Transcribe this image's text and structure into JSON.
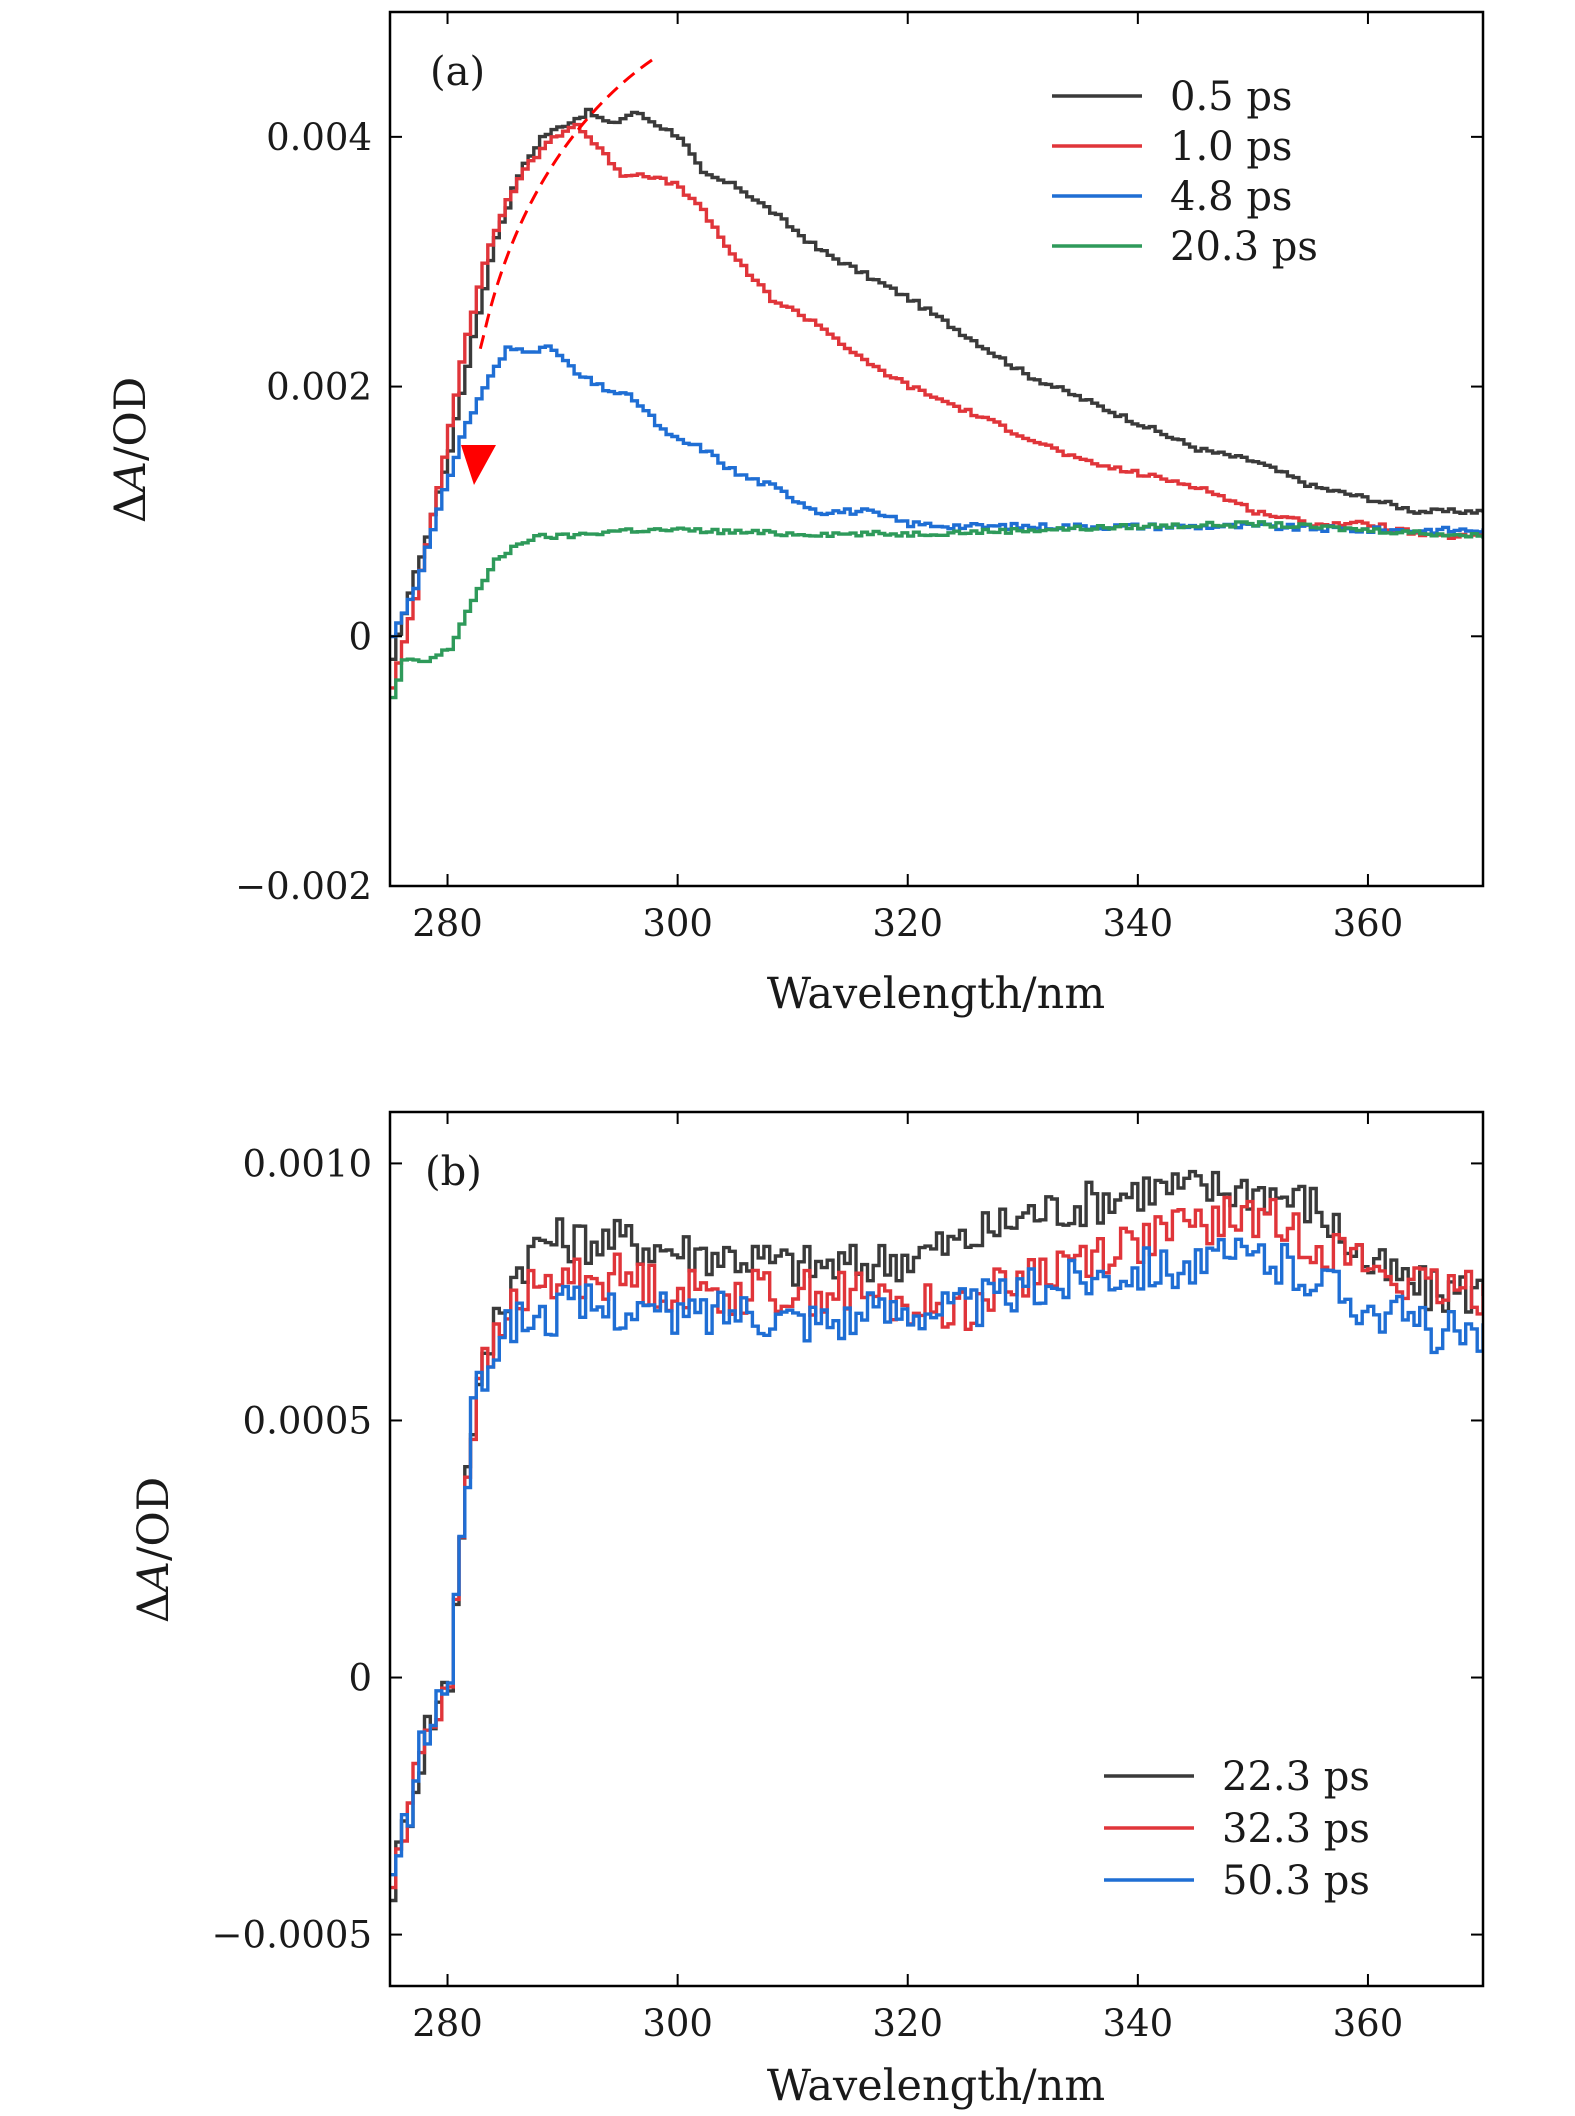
{
  "colors": {
    "black": "#3a3a3a",
    "red": "#e0353a",
    "blue": "#1f6ed4",
    "green": "#2e9a5a",
    "annotation": "#ff0000"
  },
  "chart_data": [
    {
      "type": "line",
      "panel_label": "(a)",
      "xlabel": "Wavelength/nm",
      "ylabel": "ΔA/OD",
      "ylabel_prefix": "Δ",
      "ylabel_var": "A",
      "ylabel_suffix": "/OD",
      "xlim": [
        275,
        370
      ],
      "ylim": [
        -0.002,
        0.005
      ],
      "xticks": [
        280,
        300,
        320,
        340,
        360
      ],
      "xtick_labels": [
        "280",
        "300",
        "320",
        "340",
        "360"
      ],
      "yticks": [
        -0.002,
        0,
        0.002,
        0.004
      ],
      "ytick_labels": [
        "−0.002",
        "0",
        "0.002",
        "0.004"
      ],
      "legend_position": "top-right",
      "series": [
        {
          "name": "0.5 ps",
          "color": "#3a3a3a",
          "jitter": 2e-05,
          "x": [
            275,
            276,
            277,
            278,
            280,
            282,
            284,
            286,
            288,
            290,
            292,
            294,
            296,
            298,
            300,
            302,
            305,
            308,
            312,
            316,
            320,
            325,
            330,
            335,
            340,
            345,
            350,
            355,
            360,
            364,
            367,
            370
          ],
          "y": [
            -0.0002,
            0.0002,
            0.0005,
            0.0008,
            0.0015,
            0.0024,
            0.0032,
            0.0037,
            0.004,
            0.0041,
            0.0042,
            0.0041,
            0.0042,
            0.0041,
            0.004,
            0.0037,
            0.0036,
            0.0034,
            0.0031,
            0.0029,
            0.0027,
            0.0024,
            0.0021,
            0.0019,
            0.0017,
            0.0015,
            0.0014,
            0.0012,
            0.0011,
            0.001,
            0.001,
            0.001
          ]
        },
        {
          "name": "1.0 ps",
          "color": "#e0353a",
          "jitter": 2e-05,
          "x": [
            275,
            277,
            279,
            281,
            283,
            285,
            287,
            289,
            291,
            293,
            295,
            297,
            300,
            302,
            305,
            308,
            312,
            316,
            320,
            325,
            330,
            335,
            340,
            345,
            350,
            355,
            360,
            365,
            370
          ],
          "y": [
            -0.0004,
            0.0003,
            0.0012,
            0.0022,
            0.003,
            0.0035,
            0.0038,
            0.004,
            0.0041,
            0.0039,
            0.0037,
            0.0037,
            0.0036,
            0.0034,
            0.003,
            0.0027,
            0.0025,
            0.0022,
            0.002,
            0.0018,
            0.0016,
            0.0014,
            0.0013,
            0.0012,
            0.001,
            0.0009,
            0.0009,
            0.0008,
            0.0008
          ]
        },
        {
          "name": "4.8 ps",
          "color": "#1f6ed4",
          "jitter": 2.5e-05,
          "x": [
            275,
            277,
            279,
            281,
            283,
            285,
            287,
            289,
            291,
            293,
            296,
            299,
            302,
            305,
            308,
            312,
            316,
            320,
            325,
            330,
            340,
            350,
            360,
            365,
            370
          ],
          "y": [
            0.0,
            0.0004,
            0.001,
            0.0016,
            0.002,
            0.0023,
            0.0023,
            0.0023,
            0.0021,
            0.002,
            0.0019,
            0.0016,
            0.0015,
            0.0013,
            0.0012,
            0.001,
            0.001,
            0.0009,
            0.00088,
            0.00088,
            0.00088,
            0.00088,
            0.00085,
            0.00085,
            0.00085
          ]
        },
        {
          "name": "20.3 ps",
          "color": "#2e9a5a",
          "jitter": 2e-05,
          "x": [
            275,
            276,
            278,
            280,
            282,
            284,
            286,
            288,
            290,
            295,
            300,
            310,
            320,
            330,
            340,
            350,
            360,
            370
          ],
          "y": [
            -0.0005,
            -0.0002,
            -0.0002,
            -0.0001,
            0.0003,
            0.0006,
            0.00075,
            0.0008,
            0.0008,
            0.00085,
            0.00085,
            0.00082,
            0.00082,
            0.00085,
            0.00088,
            0.0009,
            0.00085,
            0.0008
          ]
        }
      ]
    },
    {
      "type": "line",
      "panel_label": "(b)",
      "xlabel": "Wavelength/nm",
      "ylabel": "ΔA/OD",
      "ylabel_prefix": "Δ",
      "ylabel_var": "A",
      "ylabel_suffix": "/OD",
      "xlim": [
        275,
        370
      ],
      "ylim": [
        -0.0006,
        0.0011
      ],
      "xticks": [
        280,
        300,
        320,
        340,
        360
      ],
      "xtick_labels": [
        "280",
        "300",
        "320",
        "340",
        "360"
      ],
      "yticks": [
        -0.0005,
        0,
        0.0005,
        0.001
      ],
      "ytick_labels": [
        "−0.0005",
        "0",
        "0.0005",
        "0.0010"
      ],
      "legend_position": "bottom-right",
      "series": [
        {
          "name": "22.3 ps",
          "color": "#3a3a3a",
          "jitter": 4.5e-05,
          "x": [
            275,
            276,
            277,
            278,
            279,
            280,
            281,
            282,
            283,
            284,
            285,
            286,
            288,
            290,
            295,
            300,
            305,
            310,
            315,
            320,
            325,
            330,
            335,
            340,
            345,
            350,
            355,
            360,
            365,
            370
          ],
          "y": [
            -0.0004,
            -0.0003,
            -0.0002,
            -0.0001,
            -5e-05,
            0.0,
            0.0003,
            0.0005,
            0.0006,
            0.0007,
            0.00075,
            0.0008,
            0.00085,
            0.00085,
            0.00085,
            0.00083,
            0.00082,
            0.0008,
            0.0008,
            0.00082,
            0.00085,
            0.0009,
            0.00092,
            0.00095,
            0.00095,
            0.00095,
            0.00092,
            0.0008,
            0.00075,
            0.00075
          ]
        },
        {
          "name": "32.3 ps",
          "color": "#e0353a",
          "jitter": 4.5e-05,
          "x": [
            275,
            276,
            277,
            278,
            279,
            280,
            281,
            282,
            283,
            284,
            285,
            286,
            288,
            290,
            295,
            300,
            305,
            310,
            315,
            320,
            325,
            330,
            335,
            340,
            345,
            350,
            355,
            360,
            365,
            370
          ],
          "y": [
            -0.0004,
            -0.0003,
            -0.0002,
            -0.0001,
            -5e-05,
            0.0,
            0.0003,
            0.0005,
            0.0006,
            0.00065,
            0.0007,
            0.00075,
            0.00075,
            0.00078,
            0.00078,
            0.00075,
            0.00075,
            0.00075,
            0.00075,
            0.00072,
            0.00072,
            0.00078,
            0.00082,
            0.00085,
            0.00088,
            0.0009,
            0.00085,
            0.0008,
            0.00075,
            0.00075
          ]
        },
        {
          "name": "50.3 ps",
          "color": "#1f6ed4",
          "jitter": 4.5e-05,
          "x": [
            275,
            276,
            277,
            278,
            279,
            280,
            281,
            282,
            283,
            284,
            285,
            286,
            288,
            290,
            295,
            300,
            305,
            310,
            315,
            320,
            325,
            330,
            335,
            340,
            345,
            350,
            355,
            360,
            365,
            370
          ],
          "y": [
            -0.0004,
            -0.0003,
            -0.0002,
            -0.0001,
            -5e-05,
            0.0,
            0.0003,
            0.0005,
            0.0006,
            0.00065,
            0.00068,
            0.0007,
            0.0007,
            0.00072,
            0.00072,
            0.0007,
            0.00072,
            0.0007,
            0.0007,
            0.00072,
            0.00072,
            0.00075,
            0.00078,
            0.0008,
            0.0008,
            0.00082,
            0.00078,
            0.00072,
            0.00068,
            0.00065
          ]
        }
      ]
    }
  ]
}
